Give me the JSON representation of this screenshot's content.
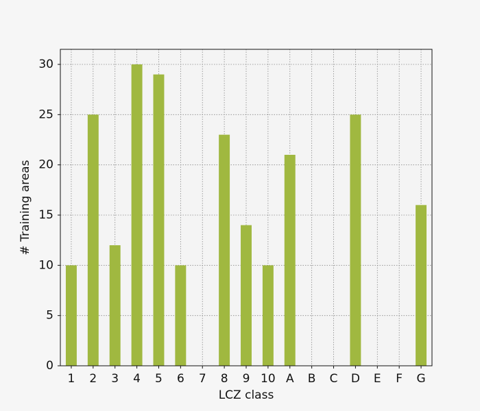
{
  "chart_data": {
    "type": "bar",
    "x_label": "LCZ class",
    "y_label": "# Training areas",
    "categories": [
      "1",
      "2",
      "3",
      "4",
      "5",
      "6",
      "7",
      "8",
      "9",
      "10",
      "A",
      "B",
      "C",
      "D",
      "E",
      "F",
      "G"
    ],
    "values": [
      10,
      25,
      12,
      30,
      29,
      10,
      0,
      23,
      14,
      10,
      21,
      0,
      0,
      25,
      0,
      0,
      16
    ],
    "color": "#a0b840",
    "ylim": [
      0,
      31.5
    ],
    "yticks": [
      0,
      5,
      10,
      15,
      20,
      25,
      30
    ],
    "grid": true
  }
}
